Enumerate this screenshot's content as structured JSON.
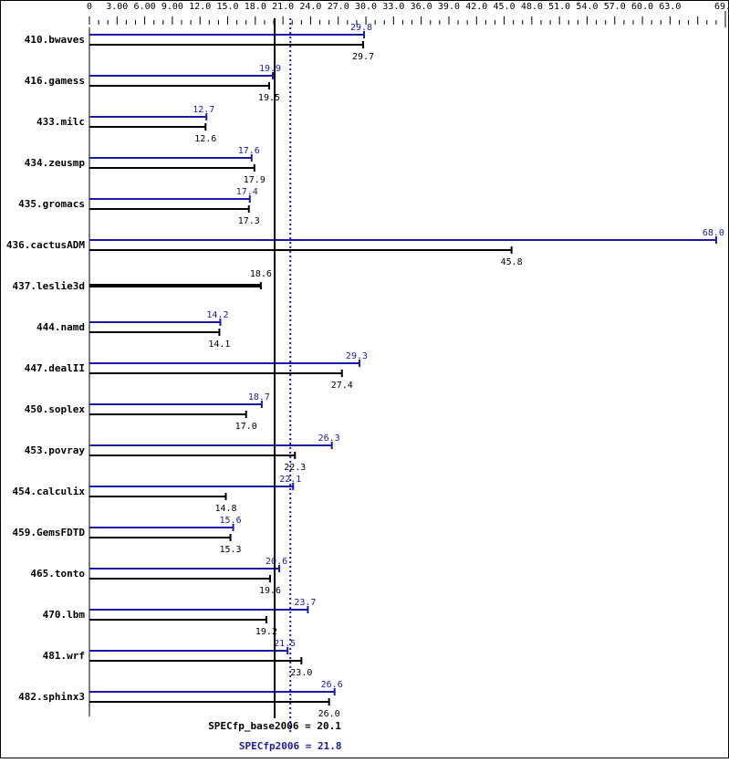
{
  "chart_data": {
    "type": "bar",
    "orientation": "horizontal",
    "xlim": [
      0,
      69
    ],
    "x_tick_labels": [
      "0",
      "3.00",
      "6.00",
      "9.00",
      "12.0",
      "15.0",
      "18.0",
      "21.0",
      "24.0",
      "27.0",
      "30.0",
      "33.0",
      "36.0",
      "39.0",
      "42.0",
      "45.0",
      "48.0",
      "51.0",
      "54.0",
      "57.0",
      "60.0",
      "63.0",
      "69.0"
    ],
    "categories": [
      "410.bwaves",
      "416.gamess",
      "433.milc",
      "434.zeusmp",
      "435.gromacs",
      "436.cactusADM",
      "437.leslie3d",
      "444.namd",
      "447.dealII",
      "450.soplex",
      "453.povray",
      "454.calculix",
      "459.GemsFDTD",
      "465.tonto",
      "470.lbm",
      "481.wrf",
      "482.sphinx3"
    ],
    "series": [
      {
        "key": "peak",
        "color": "#1a1aa6",
        "values": [
          29.8,
          19.9,
          12.7,
          17.6,
          17.4,
          68.0,
          null,
          14.2,
          29.3,
          18.7,
          26.3,
          22.1,
          15.6,
          20.6,
          23.7,
          21.5,
          26.6
        ],
        "labels": [
          "29.8",
          "19.9",
          "12.7",
          "17.6",
          "17.4",
          "68.0",
          "",
          "14.2",
          "29.3",
          "18.7",
          "26.3",
          "22.1",
          "15.6",
          "20.6",
          "23.7",
          "21.5",
          "26.6"
        ]
      },
      {
        "key": "base",
        "color": "#000000",
        "values": [
          29.7,
          19.5,
          12.6,
          17.9,
          17.3,
          45.8,
          18.6,
          14.1,
          27.4,
          17.0,
          22.3,
          14.8,
          15.3,
          19.6,
          19.2,
          23.0,
          26.0
        ],
        "labels": [
          "29.7",
          "19.5",
          "12.6",
          "17.9",
          "17.3",
          "45.8",
          "18.6",
          "14.1",
          "27.4",
          "17.0",
          "22.3",
          "14.8",
          "15.3",
          "19.6",
          "19.2",
          "23.0",
          "26.0"
        ]
      }
    ],
    "reference_lines": [
      {
        "key": "base",
        "value": 20.1,
        "label": "SPECfp_base2006 = 20.1",
        "color": "#000000",
        "style": "solid"
      },
      {
        "key": "peak",
        "value": 21.8,
        "label": "SPECfp2006 = 21.8",
        "color": "#1a1aa6",
        "style": "dotted"
      }
    ]
  }
}
